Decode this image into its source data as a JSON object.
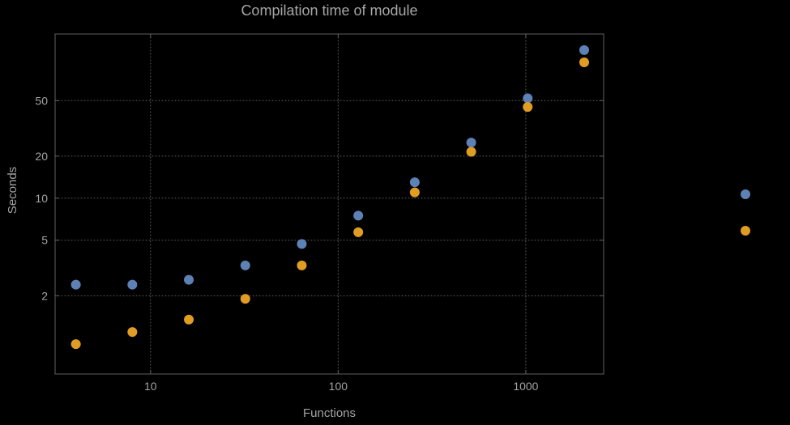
{
  "chart_data": {
    "type": "scatter",
    "title": "Compilation time of module",
    "xlabel": "Functions",
    "ylabel": "Seconds",
    "x_scale": "log",
    "y_scale": "log",
    "x": [
      4,
      8,
      16,
      32,
      64,
      128,
      256,
      512,
      1024,
      2048
    ],
    "series": [
      {
        "name": "blue",
        "color": "#5e81b5",
        "values": [
          2.4,
          2.4,
          2.6,
          3.3,
          4.7,
          7.5,
          13,
          25,
          52,
          115
        ]
      },
      {
        "name": "orange",
        "color": "#e19c24",
        "values": [
          0.9,
          1.1,
          1.35,
          1.9,
          3.3,
          5.7,
          11,
          21.5,
          45,
          94
        ]
      }
    ],
    "x_ticks": [
      10,
      100,
      1000
    ],
    "y_ticks": [
      2,
      5,
      10,
      20,
      50
    ],
    "x_range": [
      3.1,
      2600
    ],
    "y_range": [
      0.55,
      150
    ],
    "grid": "dotted",
    "frame": true,
    "legend": {
      "position": "right-outside"
    }
  },
  "theme": {
    "background": "#000000",
    "frame_color": "#606060",
    "grid_color": "#5c5c5c",
    "text_color": "#a3a3a3",
    "title_color": "#a6a6a6"
  }
}
